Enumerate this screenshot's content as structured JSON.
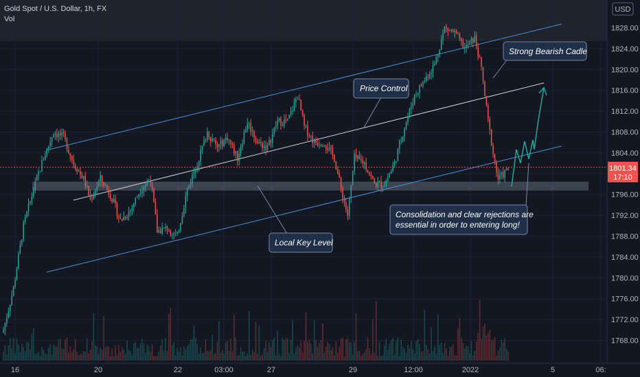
{
  "header": {
    "symbol_title": "Gold Spot / U.S. Dollar, 1h, FX",
    "volume_label": "Vol",
    "currency_badge": "USD"
  },
  "price_tag": {
    "price": "1801.34",
    "countdown": "17:10"
  },
  "colors": {
    "up": "#26a69a",
    "down": "#ef5350",
    "background": "#131722",
    "channel": "#4a90d9",
    "midline": "#d1d4dc",
    "zone": "#5d6676",
    "arrow": "#26a69a",
    "price_line": "#ef5350"
  },
  "annotations": {
    "strong_bearish": "Strong Bearish Cadle",
    "price_control": "Price Control",
    "local_key_level": "Local Key Level",
    "consolidation_1": "Consolidation and clear rejections are",
    "consolidation_2": "essential in order to entering long!"
  },
  "chart_data": {
    "type": "candlestick",
    "title": "Gold Spot / U.S. Dollar, 1h, FX",
    "ylim": [
      1764,
      1832
    ],
    "y_ticks": [
      1768,
      1772,
      1776,
      1780,
      1784,
      1788,
      1792,
      1796,
      1800,
      1804,
      1808,
      1812,
      1816,
      1820,
      1824,
      1828
    ],
    "y_tick_labels": [
      "1768.00",
      "1772.00",
      "1776.00",
      "1780.00",
      "1784.00",
      "1788.00",
      "1792.00",
      "1796.00",
      "1800.00",
      "1804.00",
      "1808.00",
      "1812.00",
      "1816.00",
      "1820.00",
      "1824.00",
      "1828.00"
    ],
    "x_tick_labels": [
      "16",
      "20",
      "22",
      "03:00",
      "27",
      "29",
      "12:00",
      "2022",
      "5",
      "06:"
    ],
    "last_price": 1801.34,
    "price_path": [
      [
        0,
        1770
      ],
      [
        6,
        1778
      ],
      [
        12,
        1790
      ],
      [
        18,
        1797
      ],
      [
        24,
        1803
      ],
      [
        30,
        1808
      ],
      [
        36,
        1807
      ],
      [
        42,
        1802
      ],
      [
        48,
        1799
      ],
      [
        52,
        1795
      ],
      [
        58,
        1799
      ],
      [
        64,
        1796
      ],
      [
        70,
        1791
      ],
      [
        76,
        1793
      ],
      [
        82,
        1797
      ],
      [
        88,
        1799
      ],
      [
        92,
        1789
      ],
      [
        98,
        1789.5
      ],
      [
        104,
        1788
      ],
      [
        110,
        1797
      ],
      [
        116,
        1802
      ],
      [
        122,
        1808
      ],
      [
        128,
        1805
      ],
      [
        134,
        1807
      ],
      [
        140,
        1803
      ],
      [
        146,
        1810
      ],
      [
        152,
        1806
      ],
      [
        158,
        1805
      ],
      [
        164,
        1810
      ],
      [
        170,
        1810
      ],
      [
        176,
        1815
      ],
      [
        180,
        1809
      ],
      [
        186,
        1806
      ],
      [
        192,
        1806
      ],
      [
        198,
        1803
      ],
      [
        202,
        1797
      ],
      [
        206,
        1792
      ],
      [
        210,
        1803
      ],
      [
        216,
        1802
      ],
      [
        222,
        1798
      ],
      [
        228,
        1798
      ],
      [
        234,
        1802
      ],
      [
        240,
        1809
      ],
      [
        246,
        1815
      ],
      [
        252,
        1818
      ],
      [
        258,
        1821
      ],
      [
        264,
        1828
      ],
      [
        270,
        1827
      ],
      [
        276,
        1824
      ],
      [
        282,
        1826
      ],
      [
        286,
        1820
      ],
      [
        290,
        1810
      ],
      [
        294,
        1802
      ],
      [
        296,
        1799
      ],
      [
        302,
        1800.8
      ]
    ],
    "n_bars": 303
  }
}
